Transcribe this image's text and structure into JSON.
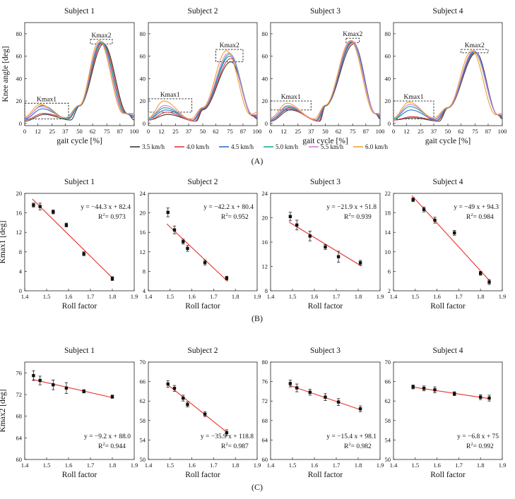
{
  "figure": {
    "legend": [
      {
        "label": "3.5 km/h",
        "color": "#3a3a3a"
      },
      {
        "label": "4.0 km/h",
        "color": "#e03a3a"
      },
      {
        "label": "4.5 km/h",
        "color": "#2f6fd6"
      },
      {
        "label": "5.0 km/h",
        "color": "#1aa890"
      },
      {
        "label": "5.5 km/h",
        "color": "#d67be0"
      },
      {
        "label": "6.0 km/h",
        "color": "#f0a030"
      }
    ],
    "panel_labels": {
      "A": "(A)",
      "B": "(B)",
      "C": "(C)"
    }
  },
  "chart_data": [
    {
      "id": "A1",
      "type": "line",
      "title": "Subject 1",
      "xlabel": "gait cycle [%]",
      "ylabel": "Knee angle [deg]",
      "xlim": [
        0,
        100
      ],
      "ylim": [
        -2,
        90
      ],
      "xticks": [
        0,
        12,
        25,
        37,
        50,
        62,
        75,
        87,
        100
      ],
      "yticks": [
        0,
        20,
        40,
        60,
        80
      ],
      "kmax1_box": {
        "label": "Kmax1",
        "x": [
          0,
          40
        ],
        "y": [
          4,
          18
        ]
      },
      "kmax2_box": {
        "label": "Kmax2",
        "x": [
          60,
          80
        ],
        "y": [
          71,
          75
        ]
      },
      "series": [
        {
          "name": "3.5 km/h",
          "k1": 8,
          "k1x": 18,
          "min1": 3,
          "min1x": 42,
          "peak": 71,
          "peakx": 72,
          "start": 2,
          "end": 3
        },
        {
          "name": "4.0 km/h",
          "k1": 9,
          "k1x": 17,
          "min1": 5,
          "min1x": 40,
          "peak": 72,
          "peakx": 71,
          "start": 3,
          "end": 5
        },
        {
          "name": "4.5 km/h",
          "k1": 13,
          "k1x": 16,
          "min1": 4,
          "min1x": 40,
          "peak": 72,
          "peakx": 70,
          "start": 4,
          "end": 6
        },
        {
          "name": "5.0 km/h",
          "k1": 16,
          "k1x": 16,
          "min1": 4,
          "min1x": 39,
          "peak": 73,
          "peakx": 70,
          "start": 5,
          "end": 7
        },
        {
          "name": "5.5 km/h",
          "k1": 15,
          "k1x": 15,
          "min1": 5,
          "min1x": 38,
          "peak": 73,
          "peakx": 69,
          "start": 5,
          "end": 8
        },
        {
          "name": "6.0 km/h",
          "k1": 17,
          "k1x": 14,
          "min1": 5,
          "min1x": 37,
          "peak": 74,
          "peakx": 68,
          "start": 6,
          "end": 9
        }
      ]
    },
    {
      "id": "A2",
      "type": "line",
      "title": "Subject 2",
      "xlabel": "",
      "ylabel": "",
      "xlim": [
        0,
        100
      ],
      "ylim": [
        -2,
        90
      ],
      "xticks": [
        0,
        12,
        25,
        37,
        50,
        62,
        75,
        87,
        100
      ],
      "yticks": [
        0,
        20,
        40,
        60,
        80
      ],
      "kmax1_box": {
        "label": "Kmax1",
        "x": [
          0,
          40
        ],
        "y": [
          10,
          22
        ]
      },
      "kmax2_box": {
        "label": "Kmax2",
        "x": [
          62,
          87
        ],
        "y": [
          55,
          66
        ]
      },
      "series": [
        {
          "name": "3.5 km/h",
          "k1": 8,
          "k1x": 18,
          "min1": 2,
          "min1x": 44,
          "peak": 55,
          "peakx": 76,
          "start": 3,
          "end": 4
        },
        {
          "name": "4.0 km/h",
          "k1": 10,
          "k1x": 17,
          "min1": 2,
          "min1x": 43,
          "peak": 58,
          "peakx": 76,
          "start": 3,
          "end": 5
        },
        {
          "name": "4.5 km/h",
          "k1": 12,
          "k1x": 16,
          "min1": 3,
          "min1x": 42,
          "peak": 60,
          "peakx": 75,
          "start": 4,
          "end": 6
        },
        {
          "name": "5.0 km/h",
          "k1": 14,
          "k1x": 15,
          "min1": 3,
          "min1x": 41,
          "peak": 62,
          "peakx": 75,
          "start": 4,
          "end": 7
        },
        {
          "name": "5.5 km/h",
          "k1": 16,
          "k1x": 15,
          "min1": 3,
          "min1x": 40,
          "peak": 63,
          "peakx": 74,
          "start": 5,
          "end": 8
        },
        {
          "name": "6.0 km/h",
          "k1": 20,
          "k1x": 14,
          "min1": 4,
          "min1x": 39,
          "peak": 65,
          "peakx": 72,
          "start": 5,
          "end": 10
        }
      ]
    },
    {
      "id": "A3",
      "type": "line",
      "title": "Subject 3",
      "xlabel": "gait cycle [%]",
      "ylabel": "",
      "xlim": [
        0,
        100
      ],
      "ylim": [
        -2,
        90
      ],
      "xticks": [
        0,
        12,
        25,
        37,
        50,
        62,
        75,
        87,
        100
      ],
      "yticks": [
        0,
        20,
        40,
        60,
        80
      ],
      "kmax1_box": {
        "label": "Kmax1",
        "x": [
          0,
          37
        ],
        "y": [
          12,
          20
        ]
      },
      "kmax2_box": {
        "label": "Kmax2",
        "x": [
          69,
          81
        ],
        "y": [
          72,
          76
        ]
      },
      "series": [
        {
          "name": "3.5 km/h",
          "k1": 12,
          "k1x": 18,
          "min1": 2,
          "min1x": 45,
          "peak": 71,
          "peakx": 76,
          "start": 2,
          "end": 4
        },
        {
          "name": "4.0 km/h",
          "k1": 13,
          "k1x": 17,
          "min1": 2,
          "min1x": 44,
          "peak": 72,
          "peakx": 75,
          "start": 3,
          "end": 5
        },
        {
          "name": "4.5 km/h",
          "k1": 14,
          "k1x": 17,
          "min1": 3,
          "min1x": 43,
          "peak": 73,
          "peakx": 75,
          "start": 3,
          "end": 6
        },
        {
          "name": "5.0 km/h",
          "k1": 15,
          "k1x": 16,
          "min1": 3,
          "min1x": 42,
          "peak": 73,
          "peakx": 74,
          "start": 4,
          "end": 7
        },
        {
          "name": "5.5 km/h",
          "k1": 16,
          "k1x": 16,
          "min1": 3,
          "min1x": 41,
          "peak": 74,
          "peakx": 74,
          "start": 4,
          "end": 8
        },
        {
          "name": "6.0 km/h",
          "k1": 18,
          "k1x": 15,
          "min1": 4,
          "min1x": 40,
          "peak": 74,
          "peakx": 73,
          "start": 5,
          "end": 9
        }
      ]
    },
    {
      "id": "A4",
      "type": "line",
      "title": "Subject 4",
      "xlabel": "gait cycle [%]",
      "ylabel": "",
      "xlim": [
        0,
        100
      ],
      "ylim": [
        -2,
        90
      ],
      "xticks": [
        0,
        12,
        25,
        37,
        50,
        62,
        75,
        87,
        100
      ],
      "yticks": [
        0,
        20,
        40,
        60,
        80
      ],
      "kmax1_box": {
        "label": "Kmax1",
        "x": [
          0,
          37
        ],
        "y": [
          4,
          20
        ]
      },
      "kmax2_box": {
        "label": "Kmax2",
        "x": [
          62,
          87
        ],
        "y": [
          63,
          66
        ]
      },
      "series": [
        {
          "name": "3.5 km/h",
          "k1": 5,
          "k1x": 18,
          "min1": 2,
          "min1x": 42,
          "peak": 63,
          "peakx": 76,
          "start": 3,
          "end": 4
        },
        {
          "name": "4.0 km/h",
          "k1": 6,
          "k1x": 17,
          "min1": 3,
          "min1x": 41,
          "peak": 63,
          "peakx": 75,
          "start": 3,
          "end": 5
        },
        {
          "name": "4.5 km/h",
          "k1": 12,
          "k1x": 16,
          "min1": 3,
          "min1x": 40,
          "peak": 64,
          "peakx": 75,
          "start": 4,
          "end": 6
        },
        {
          "name": "5.0 km/h",
          "k1": 15,
          "k1x": 15,
          "min1": 4,
          "min1x": 39,
          "peak": 64,
          "peakx": 74,
          "start": 4,
          "end": 7
        },
        {
          "name": "5.5 km/h",
          "k1": 17,
          "k1x": 15,
          "min1": 4,
          "min1x": 38,
          "peak": 65,
          "peakx": 74,
          "start": 5,
          "end": 8
        },
        {
          "name": "6.0 km/h",
          "k1": 19,
          "k1x": 14,
          "min1": 5,
          "min1x": 37,
          "peak": 65,
          "peakx": 72,
          "start": 5,
          "end": 9
        }
      ]
    },
    {
      "id": "B1",
      "type": "scatter",
      "title": "Subject 1",
      "xlabel": "Roll factor",
      "ylabel": "Kmax1 [deg]",
      "xlim": [
        1.4,
        1.9
      ],
      "ylim": [
        0,
        20
      ],
      "xticks": [
        1.4,
        1.5,
        1.6,
        1.7,
        1.8,
        1.9
      ],
      "yticks": [
        0,
        4,
        8,
        12,
        16,
        20
      ],
      "points": [
        {
          "x": 1.44,
          "y": 17.6,
          "err": 0.4
        },
        {
          "x": 1.47,
          "y": 17.3,
          "err": 0.7
        },
        {
          "x": 1.53,
          "y": 16.2,
          "err": 0.4
        },
        {
          "x": 1.59,
          "y": 13.5,
          "err": 0.4
        },
        {
          "x": 1.67,
          "y": 7.6,
          "err": 0.4
        },
        {
          "x": 1.8,
          "y": 2.5,
          "err": 0.4
        }
      ],
      "fit": {
        "slope": -44.3,
        "intercept": 82.4,
        "x": [
          1.44,
          1.8
        ]
      },
      "equation": "y = −44.3 x + 82.4",
      "r2_label": "R",
      "r2_value": "= 0.973",
      "eq_pos": "top-right"
    },
    {
      "id": "B2",
      "type": "scatter",
      "title": "Subject 2",
      "xlabel": "Roll factor",
      "ylabel": "",
      "xlim": [
        1.4,
        1.9
      ],
      "ylim": [
        4,
        24
      ],
      "xticks": [
        1.4,
        1.5,
        1.6,
        1.7,
        1.8,
        1.9
      ],
      "yticks": [
        4,
        8,
        12,
        16,
        20,
        24
      ],
      "points": [
        {
          "x": 1.49,
          "y": 20.1,
          "err": 0.9
        },
        {
          "x": 1.52,
          "y": 16.5,
          "err": 0.8
        },
        {
          "x": 1.56,
          "y": 14.1,
          "err": 0.5
        },
        {
          "x": 1.58,
          "y": 12.7,
          "err": 0.6
        },
        {
          "x": 1.66,
          "y": 9.8,
          "err": 0.5
        },
        {
          "x": 1.76,
          "y": 6.6,
          "err": 0.4
        }
      ],
      "fit": {
        "slope": -42.2,
        "intercept": 80.4,
        "x": [
          1.49,
          1.76
        ]
      },
      "equation": "y = −42.2 x + 80.4",
      "r2_label": "R",
      "r2_value": "= 0.952",
      "eq_pos": "top-right"
    },
    {
      "id": "B3",
      "type": "scatter",
      "title": "Subject 3",
      "xlabel": "Roll factor",
      "ylabel": "",
      "xlim": [
        1.4,
        1.9
      ],
      "ylim": [
        8,
        24
      ],
      "xticks": [
        1.4,
        1.5,
        1.6,
        1.7,
        1.8,
        1.9
      ],
      "yticks": [
        8,
        12,
        16,
        20,
        24
      ],
      "points": [
        {
          "x": 1.49,
          "y": 20.2,
          "err": 0.7
        },
        {
          "x": 1.52,
          "y": 18.8,
          "err": 0.8
        },
        {
          "x": 1.58,
          "y": 17.0,
          "err": 0.8
        },
        {
          "x": 1.65,
          "y": 15.2,
          "err": 0.4
        },
        {
          "x": 1.71,
          "y": 13.6,
          "err": 0.9
        },
        {
          "x": 1.81,
          "y": 12.6,
          "err": 0.4
        }
      ],
      "fit": {
        "slope": -21.9,
        "intercept": 51.8,
        "x": [
          1.49,
          1.81
        ]
      },
      "equation": "y = −21.9 x + 51.8",
      "r2_label": "R",
      "r2_value": "= 0.939",
      "eq_pos": "top-right"
    },
    {
      "id": "B4",
      "type": "scatter",
      "title": "Subject 4",
      "xlabel": "Roll factor",
      "ylabel": "",
      "xlim": [
        1.4,
        1.9
      ],
      "ylim": [
        2,
        22
      ],
      "xticks": [
        1.4,
        1.5,
        1.6,
        1.7,
        1.8,
        1.9
      ],
      "yticks": [
        2,
        6,
        10,
        14,
        18,
        22
      ],
      "points": [
        {
          "x": 1.49,
          "y": 20.7,
          "err": 0.4
        },
        {
          "x": 1.54,
          "y": 18.7,
          "err": 0.5
        },
        {
          "x": 1.59,
          "y": 16.5,
          "err": 0.6
        },
        {
          "x": 1.68,
          "y": 13.9,
          "err": 0.5
        },
        {
          "x": 1.8,
          "y": 5.6,
          "err": 0.4
        },
        {
          "x": 1.84,
          "y": 3.8,
          "err": 0.5
        }
      ],
      "fit": {
        "slope": -49,
        "intercept": 94.3,
        "x": [
          1.49,
          1.84
        ]
      },
      "equation": "y = −49 x + 94.3",
      "r2_label": "R",
      "r2_value": "= 0.984",
      "eq_pos": "top-right"
    },
    {
      "id": "C1",
      "type": "scatter",
      "title": "Subject 1",
      "xlabel": "Roll factor",
      "ylabel": "Kmax2 [deg]",
      "xlim": [
        1.4,
        1.9
      ],
      "ylim": [
        60,
        78
      ],
      "xticks": [
        1.4,
        1.5,
        1.6,
        1.7,
        1.8,
        1.9
      ],
      "yticks": [
        60,
        64,
        68,
        72,
        76
      ],
      "points": [
        {
          "x": 1.44,
          "y": 75.5,
          "err": 0.9
        },
        {
          "x": 1.47,
          "y": 74.6,
          "err": 0.8
        },
        {
          "x": 1.53,
          "y": 73.8,
          "err": 0.9
        },
        {
          "x": 1.59,
          "y": 73.2,
          "err": 1.0
        },
        {
          "x": 1.67,
          "y": 72.6,
          "err": 0.3
        },
        {
          "x": 1.8,
          "y": 71.6,
          "err": 0.3
        }
      ],
      "fit": {
        "slope": -9.2,
        "intercept": 88.0,
        "x": [
          1.44,
          1.8
        ]
      },
      "equation": "y = −9.2 x + 88.0",
      "r2_label": "R",
      "r2_value": "= 0.944",
      "eq_pos": "bottom-right"
    },
    {
      "id": "C2",
      "type": "scatter",
      "title": "Subject 2",
      "xlabel": "Roll factor",
      "ylabel": "",
      "xlim": [
        1.4,
        1.9
      ],
      "ylim": [
        50,
        70
      ],
      "xticks": [
        1.4,
        1.5,
        1.6,
        1.7,
        1.8,
        1.9
      ],
      "yticks": [
        50,
        54,
        58,
        62,
        66,
        70
      ],
      "points": [
        {
          "x": 1.49,
          "y": 65.5,
          "err": 0.7
        },
        {
          "x": 1.52,
          "y": 64.6,
          "err": 0.6
        },
        {
          "x": 1.56,
          "y": 62.6,
          "err": 0.6
        },
        {
          "x": 1.58,
          "y": 61.3,
          "err": 0.5
        },
        {
          "x": 1.66,
          "y": 59.3,
          "err": 0.5
        },
        {
          "x": 1.76,
          "y": 55.5,
          "err": 0.6
        }
      ],
      "fit": {
        "slope": -35.9,
        "intercept": 118.8,
        "x": [
          1.49,
          1.76
        ]
      },
      "equation": "y = −35.9 x + 118.8",
      "r2_label": "R",
      "r2_value": "= 0.987",
      "eq_pos": "bottom-right"
    },
    {
      "id": "C3",
      "type": "scatter",
      "title": "Subject 3",
      "xlabel": "Roll factor",
      "ylabel": "",
      "xlim": [
        1.4,
        1.9
      ],
      "ylim": [
        60,
        80
      ],
      "xticks": [
        1.4,
        1.5,
        1.6,
        1.7,
        1.8,
        1.9
      ],
      "yticks": [
        60,
        64,
        68,
        72,
        76,
        80
      ],
      "points": [
        {
          "x": 1.49,
          "y": 75.6,
          "err": 0.7
        },
        {
          "x": 1.52,
          "y": 74.7,
          "err": 0.8
        },
        {
          "x": 1.58,
          "y": 73.8,
          "err": 0.6
        },
        {
          "x": 1.65,
          "y": 72.8,
          "err": 0.7
        },
        {
          "x": 1.71,
          "y": 71.8,
          "err": 0.7
        },
        {
          "x": 1.81,
          "y": 70.4,
          "err": 0.6
        }
      ],
      "fit": {
        "slope": -15.4,
        "intercept": 98.1,
        "x": [
          1.49,
          1.81
        ]
      },
      "equation": "y = −15.4 x + 98.1",
      "r2_label": "R",
      "r2_value": "= 0.982",
      "eq_pos": "bottom-right"
    },
    {
      "id": "C4",
      "type": "scatter",
      "title": "Subject 4",
      "xlabel": "Roll factor",
      "ylabel": "",
      "xlim": [
        1.4,
        1.9
      ],
      "ylim": [
        50,
        70
      ],
      "xticks": [
        1.4,
        1.5,
        1.6,
        1.7,
        1.8,
        1.9
      ],
      "yticks": [
        50,
        54,
        58,
        62,
        66,
        70
      ],
      "points": [
        {
          "x": 1.49,
          "y": 64.9,
          "err": 0.4
        },
        {
          "x": 1.54,
          "y": 64.6,
          "err": 0.5
        },
        {
          "x": 1.59,
          "y": 64.3,
          "err": 0.6
        },
        {
          "x": 1.68,
          "y": 63.5,
          "err": 0.4
        },
        {
          "x": 1.8,
          "y": 62.8,
          "err": 0.5
        },
        {
          "x": 1.84,
          "y": 62.6,
          "err": 0.6
        }
      ],
      "fit": {
        "slope": -6.8,
        "intercept": 75,
        "x": [
          1.49,
          1.84
        ]
      },
      "equation": "y = −6.8 x + 75",
      "r2_label": "R",
      "r2_value": "= 0.992",
      "eq_pos": "bottom-right"
    }
  ]
}
